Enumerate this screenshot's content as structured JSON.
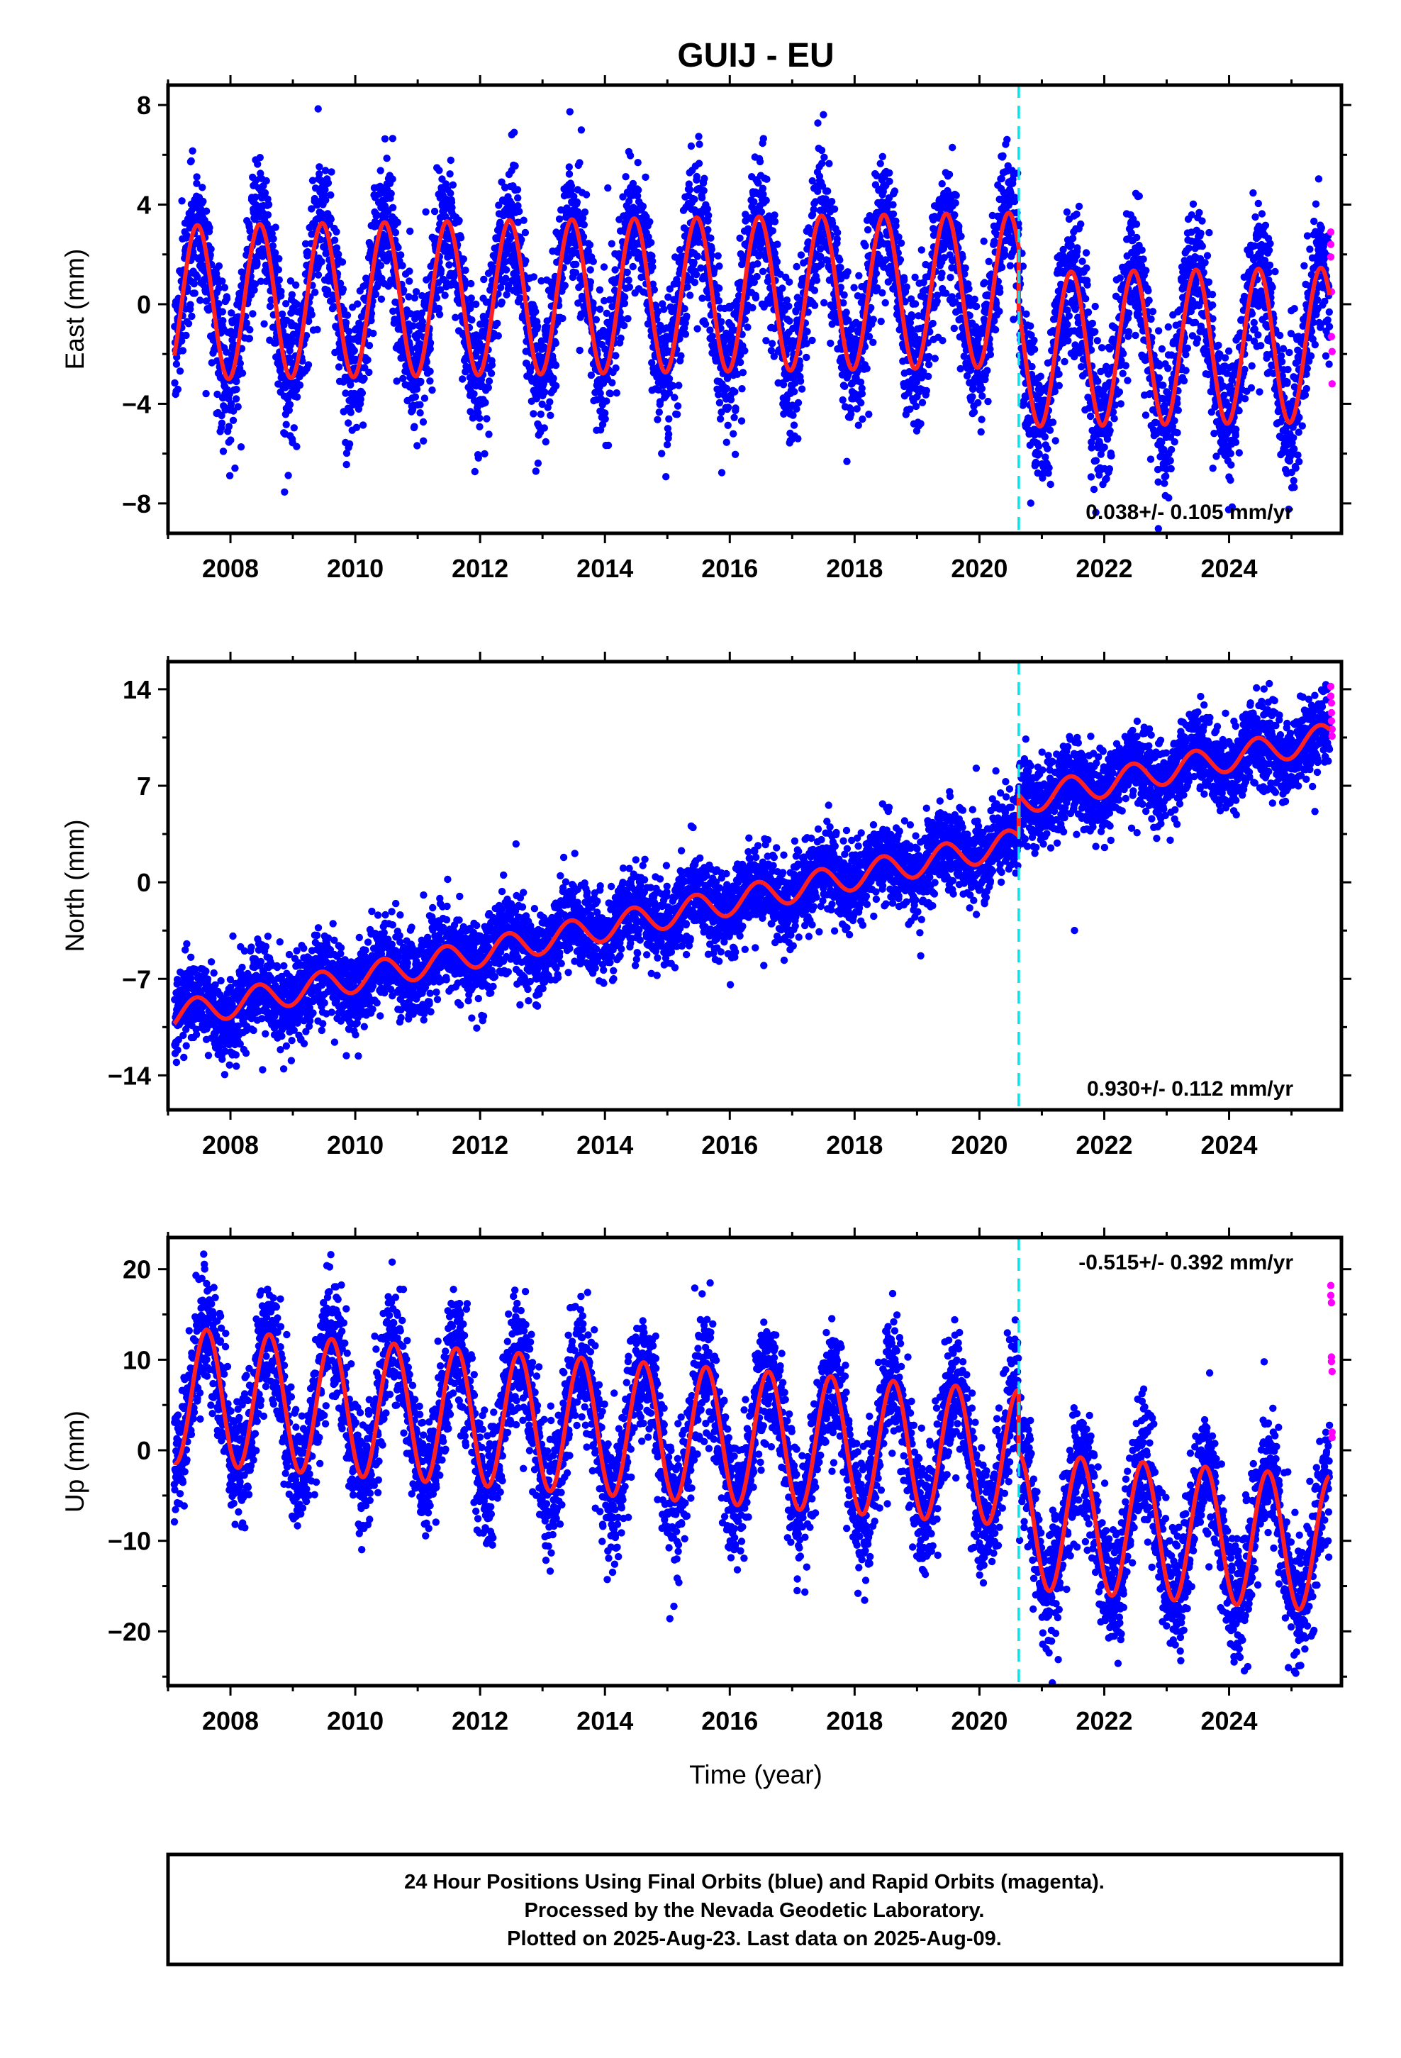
{
  "title": "GUIJ - EU",
  "xlabel": "Time (year)",
  "footer": {
    "line1": "24 Hour Positions Using Final Orbits (blue) and Rapid Orbits (magenta).",
    "line2": "Processed by the Nevada Geodetic Laboratory.",
    "line3": "Plotted on 2025-Aug-23. Last data on 2025-Aug-09."
  },
  "colors": {
    "final_orbits": "#0000ff",
    "rapid_orbits": "#ff00ff",
    "fit": "#ff2020",
    "event": "#00e5ee"
  },
  "chart_data": [
    {
      "type": "scatter",
      "component": "East",
      "ylabel": "East (mm)",
      "xlim": [
        2007.0,
        2025.8
      ],
      "ylim": [
        -9.2,
        8.8
      ],
      "x_ticks": [
        2008,
        2010,
        2012,
        2014,
        2016,
        2018,
        2020,
        2022,
        2024
      ],
      "y_ticks": [
        -8,
        -4,
        0,
        4,
        8
      ],
      "y_tick_labels": [
        "−8",
        "−4",
        "0",
        "4",
        "8"
      ],
      "data_start": 2007.1,
      "data_end": 2025.61,
      "event_year": 2020.63,
      "rate_text": "0.038+/- 0.105 mm/yr",
      "rate_position": "bottom-right",
      "model": {
        "seasonal_amplitude": 3.1,
        "seasonal_phase_year": 0.47,
        "pre_offset": 0.4,
        "post_offset": -2.0,
        "trend_per_year": 0.038,
        "reference_year": 2016.0
      },
      "scatter_sigma": 1.35,
      "rapid_points": {
        "x": [
          2025.63,
          2025.63,
          2025.63,
          2025.64,
          2025.64,
          2025.65,
          2025.65
        ],
        "y": [
          2.9,
          2.4,
          1.9,
          0.5,
          -1.3,
          -1.9,
          -3.2
        ]
      }
    },
    {
      "type": "scatter",
      "component": "North",
      "ylabel": "North (mm)",
      "xlim": [
        2007.0,
        2025.8
      ],
      "ylim": [
        -16.5,
        16.0
      ],
      "x_ticks": [
        2008,
        2010,
        2012,
        2014,
        2016,
        2018,
        2020,
        2022,
        2024
      ],
      "y_ticks": [
        -14,
        -7,
        0,
        7,
        14
      ],
      "y_tick_labels": [
        "−14",
        "−7",
        "0",
        "7",
        "14"
      ],
      "data_start": 2007.1,
      "data_end": 2025.61,
      "event_year": 2020.63,
      "rate_text": "0.930+/- 0.112 mm/yr",
      "rate_position": "bottom-right",
      "model": {
        "seasonal_amplitude": 1.0,
        "seasonal_phase_year": 0.45,
        "pre_offset": -1.4,
        "post_offset": 1.6,
        "trend_per_year": 0.93,
        "reference_year": 2016.0
      },
      "scatter_sigma": 1.5,
      "rapid_points": {
        "x": [
          2025.63,
          2025.63,
          2025.64,
          2025.64,
          2025.64,
          2025.65,
          2025.65
        ],
        "y": [
          14.2,
          13.5,
          13.0,
          12.3,
          11.7,
          11.1,
          10.6
        ]
      }
    },
    {
      "type": "scatter",
      "component": "Up",
      "ylabel": "Up (mm)",
      "xlim": [
        2007.0,
        2025.8
      ],
      "ylim": [
        -26.0,
        23.5
      ],
      "x_ticks": [
        2008,
        2010,
        2012,
        2014,
        2016,
        2018,
        2020,
        2022,
        2024
      ],
      "y_ticks": [
        -20,
        -10,
        0,
        10,
        20
      ],
      "y_tick_labels": [
        "−20",
        "−10",
        "0",
        "10",
        "20"
      ],
      "data_start": 2007.1,
      "data_end": 2025.61,
      "event_year": 2020.63,
      "rate_text": "-0.515+/- 0.392 mm/yr",
      "rate_position": "top-right",
      "model": {
        "seasonal_amplitude": 7.5,
        "seasonal_phase_year": 0.62,
        "pre_offset": 1.5,
        "post_offset": -5.4,
        "trend_per_year": -0.515,
        "reference_year": 2016.0
      },
      "scatter_sigma": 3.4,
      "rapid_points": {
        "x": [
          2025.63,
          2025.63,
          2025.64,
          2025.64,
          2025.64,
          2025.65,
          2025.65,
          2025.65
        ],
        "y": [
          18.2,
          17.1,
          16.3,
          10.3,
          9.8,
          8.7,
          2.0,
          1.4
        ]
      }
    }
  ]
}
